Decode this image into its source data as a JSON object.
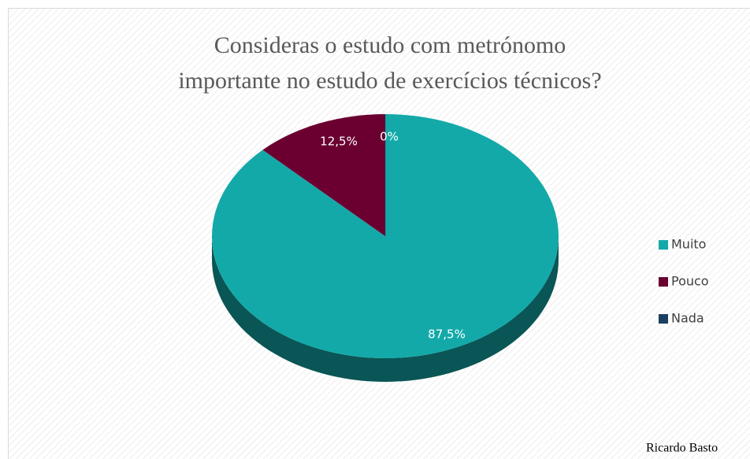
{
  "chart_data": {
    "type": "pie",
    "title": [
      "Consideras o estudo com metrónomo",
      "importante no estudo de exercícios técnicos?"
    ],
    "categories": [
      "Muito",
      "Pouco",
      "Nada"
    ],
    "values": [
      87.5,
      12.5,
      0
    ],
    "value_labels": [
      "87,5%",
      "12,5%",
      "0%"
    ],
    "colors": [
      "#14a9a9",
      "#6b0030",
      "#1b3f60"
    ],
    "legend": "right",
    "annotation": "Ricardo Basto"
  }
}
